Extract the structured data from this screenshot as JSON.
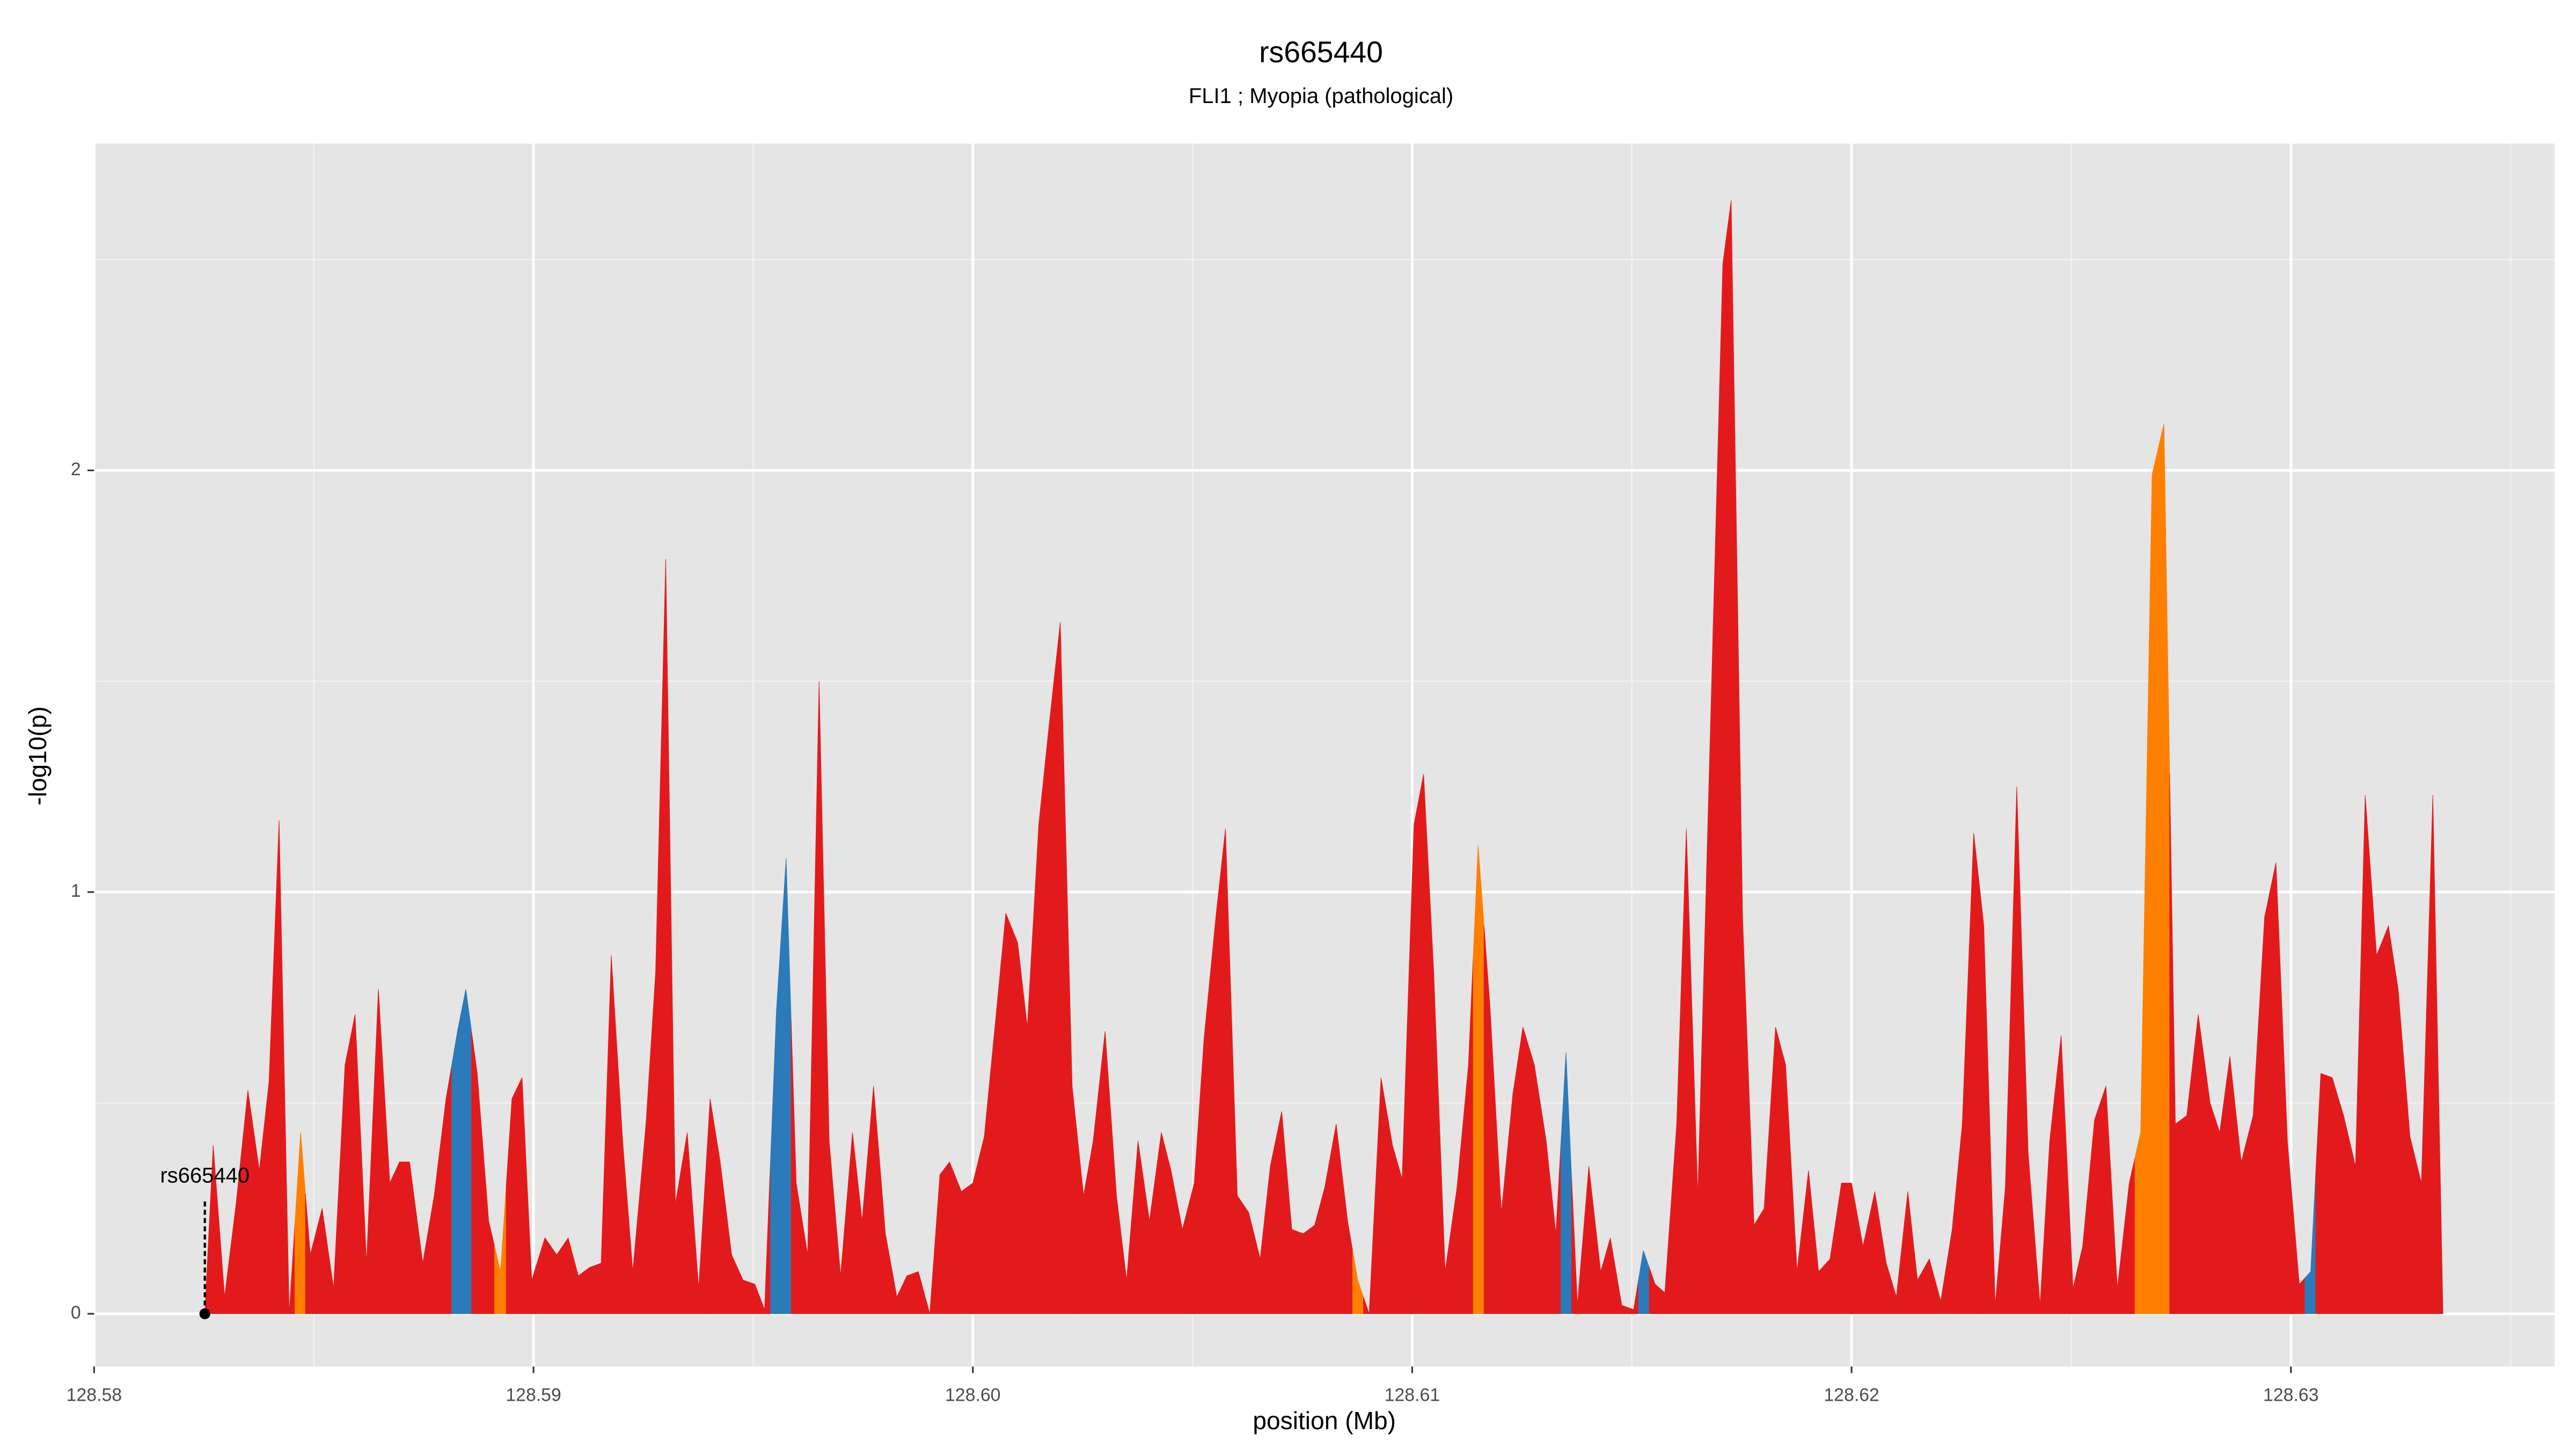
{
  "chart_data": {
    "type": "area",
    "title": "rs665440",
    "subtitle": "FLI1 ; Myopia (pathological)",
    "x_label": "position (Mb)",
    "y_label": "-log10(p)",
    "xlim": [
      128.58,
      128.636
    ],
    "ylim": [
      -0.125,
      2.775
    ],
    "xticks": [
      128.58,
      128.59,
      {
        "value": 128.6,
        "label": "128.60"
      },
      128.61,
      128.62,
      128.63
    ],
    "yticks": [
      0,
      1,
      2
    ],
    "x_minor_grid": [
      128.585,
      128.595,
      128.605,
      128.615,
      128.625,
      128.635
    ],
    "y_minor_grid": [
      0.5,
      1.5,
      2.5
    ],
    "grid": true,
    "annotation": {
      "label": "rs665440",
      "x": 128.58252
    },
    "x": [
      128.58252,
      128.58271,
      128.58297,
      128.58323,
      128.5835,
      128.58376,
      128.58398,
      128.58421,
      128.58444,
      128.5847,
      128.58492,
      128.58519,
      128.58545,
      128.58571,
      128.58594,
      128.5862,
      128.58647,
      128.58673,
      128.58695,
      128.58718,
      128.58748,
      128.58774,
      128.58801,
      128.58827,
      128.58846,
      128.58872,
      128.58898,
      128.58925,
      128.58951,
      128.58974,
      128.58996,
      128.59026,
      128.59053,
      128.59079,
      128.59102,
      128.59128,
      128.59154,
      128.59177,
      128.59203,
      128.59226,
      128.59256,
      128.59278,
      128.59301,
      128.59323,
      128.5935,
      128.59376,
      128.59402,
      128.59425,
      128.59451,
      128.59477,
      128.59504,
      128.59526,
      128.59553,
      128.59575,
      128.59598,
      128.59624,
      128.5965,
      128.59673,
      128.59699,
      128.59726,
      128.59748,
      128.59774,
      128.59801,
      128.59827,
      128.5985,
      128.59876,
      128.59902,
      128.59925,
      128.59947,
      128.59974,
      128.6,
      128.60026,
      128.60053,
      128.60075,
      128.60102,
      128.60124,
      128.6015,
      128.60173,
      128.60199,
      128.60226,
      128.60252,
      128.60274,
      128.60301,
      128.60327,
      128.6035,
      128.60376,
      128.60402,
      128.60429,
      128.60451,
      128.60477,
      128.60504,
      128.60526,
      128.60553,
      128.60575,
      128.60602,
      128.60628,
      128.60654,
      128.60677,
      128.60703,
      128.60726,
      128.60752,
      128.60778,
      128.60801,
      128.60827,
      128.60853,
      128.60876,
      128.60902,
      128.60929,
      128.60955,
      128.60977,
      128.61004,
      128.61026,
      128.61049,
      128.61075,
      128.61102,
      128.61128,
      128.6115,
      128.61177,
      128.61203,
      128.61229,
      128.61252,
      128.61278,
      128.61305,
      128.61327,
      128.6135,
      128.61376,
      128.61402,
      128.61429,
      128.61451,
      128.61477,
      128.61504,
      128.61526,
      128.61553,
      128.61575,
      128.61602,
      128.61624,
      128.6165,
      128.61677,
      128.61707,
      128.61726,
      128.61752,
      128.61778,
      128.61801,
      128.61827,
      128.6185,
      128.61876,
      128.61902,
      128.61925,
      128.61951,
      128.61977,
      128.62,
      128.62026,
      128.62053,
      128.62079,
      128.62102,
      128.62128,
      128.6215,
      128.62177,
      128.62203,
      128.62229,
      128.62252,
      128.62278,
      128.62301,
      128.62327,
      128.6235,
      128.62376,
      128.62402,
      128.62429,
      128.62451,
      128.62477,
      128.62504,
      128.62526,
      128.62553,
      128.62579,
      128.62605,
      128.62632,
      128.62658,
      128.62684,
      128.62711,
      128.62737,
      128.62763,
      128.62789,
      128.62816,
      128.62838,
      128.62861,
      128.62887,
      128.62914,
      128.6294,
      128.62966,
      128.62992,
      128.63019,
      128.63045,
      128.63068,
      128.63094,
      128.6312,
      128.63147,
      128.63169,
      128.63195,
      128.63222,
      128.63244,
      128.63271,
      128.63297,
      128.63323,
      128.63346
    ],
    "values": [
      0,
      0.4,
      0.04,
      0.26,
      0.53,
      0.34,
      0.55,
      1.17,
      0,
      0.43,
      0.14,
      0.25,
      0.06,
      0.59,
      0.71,
      0.12,
      0.77,
      0.31,
      0.36,
      0.36,
      0.12,
      0.28,
      0.51,
      0.67,
      0.77,
      0.57,
      0.22,
      0.1,
      0.51,
      0.56,
      0.08,
      0.18,
      0.14,
      0.18,
      0.09,
      0.11,
      0.12,
      0.85,
      0.41,
      0.1,
      0.45,
      0.81,
      1.79,
      0.26,
      0.43,
      0.06,
      0.51,
      0.36,
      0.14,
      0.08,
      0.07,
      0.01,
      0.72,
      1.08,
      0.31,
      0.14,
      1.5,
      0.41,
      0.09,
      0.43,
      0.22,
      0.54,
      0.19,
      0.04,
      0.09,
      0.1,
      0,
      0.33,
      0.36,
      0.29,
      0.31,
      0.42,
      0.71,
      0.95,
      0.88,
      0.68,
      1.16,
      1.39,
      1.64,
      0.54,
      0.28,
      0.41,
      0.67,
      0.28,
      0.08,
      0.41,
      0.22,
      0.43,
      0.34,
      0.2,
      0.31,
      0.65,
      0.94,
      1.15,
      0.28,
      0.24,
      0.13,
      0.35,
      0.48,
      0.2,
      0.19,
      0.21,
      0.3,
      0.45,
      0.22,
      0.08,
      0,
      0.56,
      0.4,
      0.32,
      1.16,
      1.28,
      0.81,
      0.1,
      0.3,
      0.59,
      1.11,
      0.73,
      0.24,
      0.52,
      0.68,
      0.59,
      0.41,
      0.19,
      0.62,
      0.02,
      0.35,
      0.1,
      0.18,
      0.02,
      0.01,
      0.15,
      0.07,
      0.05,
      0.45,
      1.15,
      0.28,
      1.32,
      2.49,
      2.64,
      0.94,
      0.21,
      0.25,
      0.68,
      0.59,
      0.1,
      0.34,
      0.1,
      0.13,
      0.31,
      0.31,
      0.16,
      0.29,
      0.12,
      0.04,
      0.29,
      0.08,
      0.13,
      0.03,
      0.2,
      0.45,
      1.14,
      0.92,
      0.02,
      0.3,
      1.25,
      0.38,
      0.02,
      0.41,
      0.66,
      0.06,
      0.16,
      0.46,
      0.54,
      0.06,
      0.31,
      0.43,
      1.99,
      2.11,
      0.45,
      0.47,
      0.71,
      0.5,
      0.43,
      0.61,
      0.36,
      0.47,
      0.94,
      1.07,
      0.41,
      0.07,
      0.1,
      0.57,
      0.56,
      0.47,
      0.35,
      1.23,
      0.85,
      0.92,
      0.77,
      0.42,
      0.31,
      1.23,
      0
    ],
    "colors": [
      "#e31a1c",
      "#e31a1c",
      "#e31a1c",
      "#e31a1c",
      "#e31a1c",
      "#e31a1c",
      "#e31a1c",
      "#e31a1c",
      "#e31a1c",
      "#ff7f00",
      "#e31a1c",
      "#e31a1c",
      "#e31a1c",
      "#e31a1c",
      "#e31a1c",
      "#e31a1c",
      "#e31a1c",
      "#e31a1c",
      "#e31a1c",
      "#e31a1c",
      "#e31a1c",
      "#e31a1c",
      "#e31a1c",
      "#2b7bba",
      "#2b7bba",
      "#e31a1c",
      "#e31a1c",
      "#ff7f00",
      "#e31a1c",
      "#e31a1c",
      "#e31a1c",
      "#e31a1c",
      "#e31a1c",
      "#e31a1c",
      "#e31a1c",
      "#e31a1c",
      "#e31a1c",
      "#e31a1c",
      "#e31a1c",
      "#e31a1c",
      "#e31a1c",
      "#e31a1c",
      "#e31a1c",
      "#e31a1c",
      "#e31a1c",
      "#e31a1c",
      "#e31a1c",
      "#e31a1c",
      "#e31a1c",
      "#e31a1c",
      "#e31a1c",
      "#e31a1c",
      "#2b7bba",
      "#2b7bba",
      "#e31a1c",
      "#e31a1c",
      "#e31a1c",
      "#e31a1c",
      "#e31a1c",
      "#e31a1c",
      "#e31a1c",
      "#e31a1c",
      "#e31a1c",
      "#e31a1c",
      "#e31a1c",
      "#e31a1c",
      "#e31a1c",
      "#e31a1c",
      "#e31a1c",
      "#e31a1c",
      "#e31a1c",
      "#e31a1c",
      "#e31a1c",
      "#e31a1c",
      "#e31a1c",
      "#e31a1c",
      "#e31a1c",
      "#e31a1c",
      "#e31a1c",
      "#e31a1c",
      "#e31a1c",
      "#e31a1c",
      "#e31a1c",
      "#e31a1c",
      "#e31a1c",
      "#e31a1c",
      "#e31a1c",
      "#e31a1c",
      "#e31a1c",
      "#e31a1c",
      "#e31a1c",
      "#e31a1c",
      "#e31a1c",
      "#e31a1c",
      "#e31a1c",
      "#e31a1c",
      "#e31a1c",
      "#e31a1c",
      "#e31a1c",
      "#e31a1c",
      "#e31a1c",
      "#e31a1c",
      "#e31a1c",
      "#e31a1c",
      "#e31a1c",
      "#ff7f00",
      "#e31a1c",
      "#e31a1c",
      "#e31a1c",
      "#e31a1c",
      "#e31a1c",
      "#e31a1c",
      "#e31a1c",
      "#e31a1c",
      "#e31a1c",
      "#e31a1c",
      "#ff7f00",
      "#e31a1c",
      "#e31a1c",
      "#e31a1c",
      "#e31a1c",
      "#e31a1c",
      "#e31a1c",
      "#e31a1c",
      "#2b7bba",
      "#e31a1c",
      "#e31a1c",
      "#e31a1c",
      "#e31a1c",
      "#e31a1c",
      "#e31a1c",
      "#2b7bba",
      "#e31a1c",
      "#e31a1c",
      "#e31a1c",
      "#e31a1c",
      "#e31a1c",
      "#e31a1c",
      "#e31a1c",
      "#e31a1c",
      "#e31a1c",
      "#e31a1c",
      "#e31a1c",
      "#e31a1c",
      "#e31a1c",
      "#e31a1c",
      "#e31a1c",
      "#e31a1c",
      "#e31a1c",
      "#e31a1c",
      "#e31a1c",
      "#e31a1c",
      "#e31a1c",
      "#e31a1c",
      "#e31a1c",
      "#e31a1c",
      "#e31a1c",
      "#e31a1c",
      "#e31a1c",
      "#e31a1c",
      "#e31a1c",
      "#e31a1c",
      "#e31a1c",
      "#e31a1c",
      "#e31a1c",
      "#e31a1c",
      "#e31a1c",
      "#e31a1c",
      "#e31a1c",
      "#e31a1c",
      "#e31a1c",
      "#e31a1c",
      "#e31a1c",
      "#e31a1c",
      "#e31a1c",
      "#e31a1c",
      "#ff7f00",
      "#ff7f00",
      "#ff7f00",
      "#e31a1c",
      "#e31a1c",
      "#e31a1c",
      "#e31a1c",
      "#e31a1c",
      "#e31a1c",
      "#e31a1c",
      "#e31a1c",
      "#e31a1c",
      "#e31a1c",
      "#e31a1c",
      "#e31a1c",
      "#2b7bba",
      "#e31a1c",
      "#e31a1c",
      "#e31a1c",
      "#e31a1c",
      "#e31a1c",
      "#e31a1c",
      "#e31a1c",
      "#e31a1c",
      "#e31a1c",
      "#e31a1c",
      "#e31a1c",
      "#e31a1c"
    ]
  }
}
